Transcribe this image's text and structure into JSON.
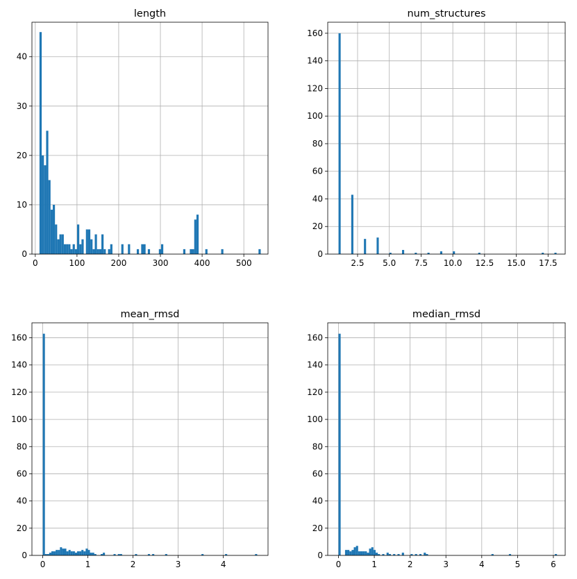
{
  "chart_data": [
    {
      "type": "bar",
      "title": "length",
      "xlim": [
        -8,
        558
      ],
      "ylim": [
        0,
        47
      ],
      "xticks": [
        0,
        100,
        200,
        300,
        400,
        500
      ],
      "xtick_labels": [
        "0",
        "100",
        "200",
        "300",
        "400",
        "500"
      ],
      "yticks": [
        0,
        10,
        20,
        30,
        40
      ],
      "ytick_labels": [
        "0",
        "10",
        "20",
        "30",
        "40"
      ],
      "grid": true,
      "bin_width": 5.3,
      "bins": [
        [
          10.1,
          45
        ],
        [
          15.4,
          20
        ],
        [
          20.7,
          18
        ],
        [
          26.0,
          25
        ],
        [
          31.3,
          15
        ],
        [
          36.6,
          9
        ],
        [
          41.9,
          10
        ],
        [
          47.2,
          6
        ],
        [
          52.5,
          3
        ],
        [
          57.8,
          4
        ],
        [
          63.1,
          4
        ],
        [
          68.4,
          2
        ],
        [
          73.7,
          2
        ],
        [
          79.0,
          2
        ],
        [
          84.3,
          1
        ],
        [
          89.6,
          2
        ],
        [
          94.9,
          1
        ],
        [
          100.2,
          6
        ],
        [
          105.5,
          2
        ],
        [
          110.8,
          3
        ],
        [
          121.4,
          5
        ],
        [
          126.7,
          5
        ],
        [
          132.0,
          3
        ],
        [
          137.3,
          1
        ],
        [
          142.6,
          4
        ],
        [
          147.9,
          1
        ],
        [
          153.2,
          1
        ],
        [
          158.5,
          4
        ],
        [
          163.8,
          1
        ],
        [
          174.4,
          1
        ],
        [
          179.7,
          2
        ],
        [
          206.2,
          2
        ],
        [
          222.1,
          2
        ],
        [
          243.3,
          1
        ],
        [
          253.9,
          2
        ],
        [
          259.2,
          2
        ],
        [
          269.8,
          1
        ],
        [
          296.3,
          1
        ],
        [
          301.6,
          2
        ],
        [
          354.6,
          1
        ],
        [
          370.5,
          1
        ],
        [
          375.8,
          1
        ],
        [
          381.1,
          7
        ],
        [
          386.4,
          8
        ],
        [
          407.6,
          1
        ],
        [
          445.7,
          1
        ],
        [
          535.2,
          1
        ]
      ]
    },
    {
      "type": "bar",
      "title": "num_structures",
      "xlim": [
        0.15,
        18.85
      ],
      "ylim": [
        0,
        168
      ],
      "xticks": [
        2.5,
        5.0,
        7.5,
        10.0,
        12.5,
        15.0,
        17.5
      ],
      "xtick_labels": [
        "2.5",
        "5.0",
        "7.5",
        "10.0",
        "12.5",
        "15.0",
        "17.5"
      ],
      "yticks": [
        0,
        20,
        40,
        60,
        80,
        100,
        120,
        140,
        160
      ],
      "ytick_labels": [
        "0",
        "20",
        "40",
        "60",
        "80",
        "100",
        "120",
        "140",
        "160"
      ],
      "grid": true,
      "bin_width": 0.17,
      "bins": [
        [
          1.0,
          160
        ],
        [
          2.0,
          43
        ],
        [
          3.0,
          11
        ],
        [
          4.0,
          12
        ],
        [
          5.0,
          1
        ],
        [
          6.0,
          3
        ],
        [
          7.0,
          1
        ],
        [
          8.0,
          1
        ],
        [
          9.0,
          2
        ],
        [
          10.0,
          2
        ],
        [
          12.0,
          1
        ],
        [
          17.0,
          1
        ],
        [
          18.0,
          1
        ]
      ]
    },
    {
      "type": "bar",
      "title": "mean_rmsd",
      "xlim": [
        -0.24,
        4.99
      ],
      "ylim": [
        0,
        171
      ],
      "xticks": [
        0,
        1,
        2,
        3,
        4
      ],
      "xtick_labels": [
        "0",
        "1",
        "2",
        "3",
        "4"
      ],
      "yticks": [
        0,
        20,
        40,
        60,
        80,
        100,
        120,
        140,
        160
      ],
      "ytick_labels": [
        "0",
        "20",
        "40",
        "60",
        "80",
        "100",
        "120",
        "140",
        "160"
      ],
      "grid": true,
      "bin_width": 0.0475,
      "bins": [
        [
          0.0,
          163
        ],
        [
          0.0475,
          1
        ],
        [
          0.095,
          1
        ],
        [
          0.1425,
          2
        ],
        [
          0.19,
          3
        ],
        [
          0.2375,
          3
        ],
        [
          0.285,
          4
        ],
        [
          0.3325,
          4
        ],
        [
          0.38,
          6
        ],
        [
          0.4275,
          5
        ],
        [
          0.475,
          5
        ],
        [
          0.5225,
          3
        ],
        [
          0.57,
          4
        ],
        [
          0.6175,
          3
        ],
        [
          0.665,
          3
        ],
        [
          0.7125,
          2
        ],
        [
          0.76,
          3
        ],
        [
          0.8075,
          3
        ],
        [
          0.855,
          4
        ],
        [
          0.9025,
          3
        ],
        [
          0.95,
          5
        ],
        [
          0.9975,
          4
        ],
        [
          1.045,
          2
        ],
        [
          1.0925,
          2
        ],
        [
          1.14,
          1
        ],
        [
          1.2825,
          1
        ],
        [
          1.33,
          2
        ],
        [
          1.5675,
          1
        ],
        [
          1.6625,
          1
        ],
        [
          1.71,
          1
        ],
        [
          2.0425,
          1
        ],
        [
          2.3275,
          1
        ],
        [
          2.4225,
          1
        ],
        [
          2.71,
          1
        ],
        [
          3.515,
          1
        ],
        [
          4.0375,
          1
        ],
        [
          4.7025,
          1
        ]
      ]
    },
    {
      "type": "bar",
      "title": "median_rmsd",
      "xlim": [
        -0.3,
        6.33
      ],
      "ylim": [
        0,
        171
      ],
      "xticks": [
        0,
        1,
        2,
        3,
        4,
        5,
        6
      ],
      "xtick_labels": [
        "0",
        "1",
        "2",
        "3",
        "4",
        "5",
        "6"
      ],
      "yticks": [
        0,
        20,
        40,
        60,
        80,
        100,
        120,
        140,
        160
      ],
      "ytick_labels": [
        "0",
        "20",
        "40",
        "60",
        "80",
        "100",
        "120",
        "140",
        "160"
      ],
      "grid": true,
      "bin_width": 0.061,
      "bins": [
        [
          0.0,
          163
        ],
        [
          0.183,
          4
        ],
        [
          0.244,
          4
        ],
        [
          0.305,
          3
        ],
        [
          0.366,
          4
        ],
        [
          0.427,
          6
        ],
        [
          0.488,
          7
        ],
        [
          0.549,
          3
        ],
        [
          0.61,
          3
        ],
        [
          0.671,
          3
        ],
        [
          0.732,
          3
        ],
        [
          0.793,
          2
        ],
        [
          0.854,
          5
        ],
        [
          0.915,
          6
        ],
        [
          0.976,
          4
        ],
        [
          1.037,
          2
        ],
        [
          1.098,
          1
        ],
        [
          1.22,
          1
        ],
        [
          1.342,
          2
        ],
        [
          1.403,
          1
        ],
        [
          1.525,
          1
        ],
        [
          1.647,
          1
        ],
        [
          1.769,
          2
        ],
        [
          2.013,
          1
        ],
        [
          2.135,
          1
        ],
        [
          2.257,
          1
        ],
        [
          2.379,
          2
        ],
        [
          2.44,
          1
        ],
        [
          4.27,
          1
        ],
        [
          4.758,
          1
        ],
        [
          6.039,
          1
        ]
      ]
    }
  ]
}
